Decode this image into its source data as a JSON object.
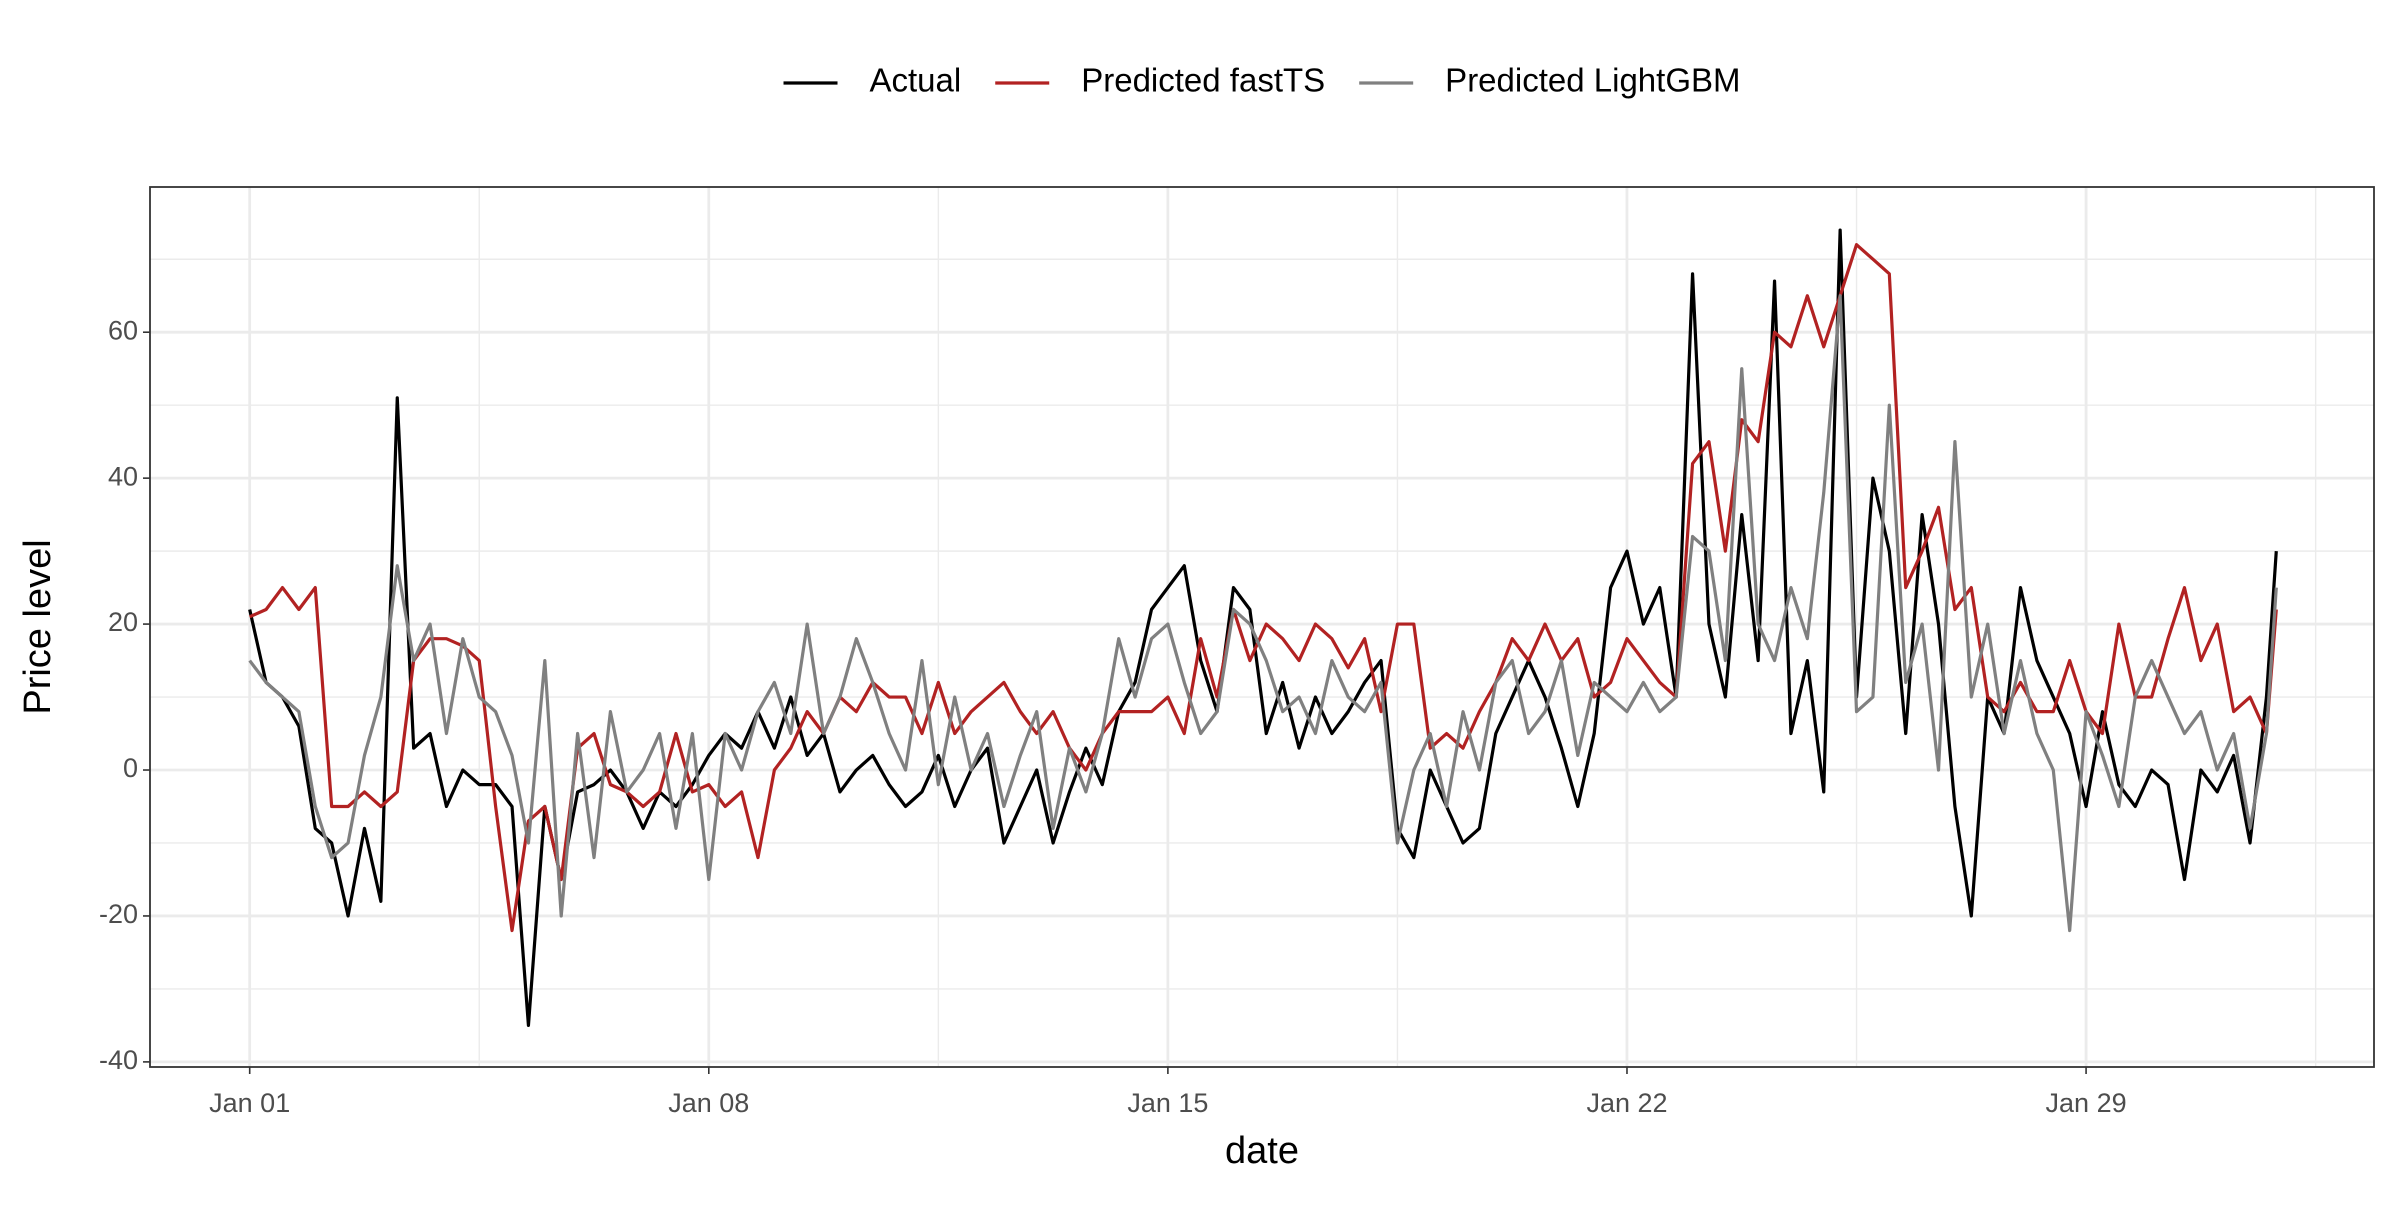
{
  "chart_data": {
    "type": "line",
    "xlabel": "date",
    "ylabel": "Price level",
    "legend": "top",
    "grid": true,
    "x": [
      0,
      0.25,
      0.5,
      0.75,
      1,
      1.25,
      1.5,
      1.75,
      2,
      2.25,
      2.5,
      2.75,
      3,
      3.25,
      3.5,
      3.75,
      4,
      4.25,
      4.5,
      4.75,
      5,
      5.25,
      5.5,
      5.75,
      6,
      6.25,
      6.5,
      6.75,
      7,
      7.25,
      7.5,
      7.75,
      8,
      8.25,
      8.5,
      8.75,
      9,
      9.25,
      9.5,
      9.75,
      10,
      10.25,
      10.5,
      10.75,
      11,
      11.25,
      11.5,
      11.75,
      12,
      12.25,
      12.5,
      12.75,
      13,
      13.25,
      13.5,
      13.75,
      14,
      14.25,
      14.5,
      14.75,
      15,
      15.25,
      15.5,
      15.75,
      16,
      16.25,
      16.5,
      16.75,
      17,
      17.25,
      17.5,
      17.75,
      18,
      18.25,
      18.5,
      18.75,
      19,
      19.25,
      19.5,
      19.75,
      20,
      20.25,
      20.5,
      20.75,
      21,
      21.25,
      21.5,
      21.75,
      22,
      22.25,
      22.5,
      22.75,
      23,
      23.25,
      23.5,
      23.75,
      24,
      24.25,
      24.5,
      24.75,
      25,
      25.25,
      25.5,
      25.75,
      26,
      26.25,
      26.5,
      26.75,
      27,
      27.25,
      27.5,
      27.75,
      28,
      28.25,
      28.5,
      28.75,
      29,
      29.25,
      29.5,
      29.75,
      30,
      30.25,
      30.5,
      30.75,
      30.9
    ],
    "series": [
      {
        "name": "Actual",
        "color": "#000000",
        "values": [
          22,
          12,
          10,
          6,
          -8,
          -10,
          -20,
          -8,
          -18,
          51,
          3,
          5,
          -5,
          0,
          -2,
          -2,
          -5,
          -35,
          -5,
          -15,
          -3,
          -2,
          0,
          -3,
          -8,
          -3,
          -5,
          -2,
          2,
          5,
          3,
          8,
          3,
          10,
          2,
          5,
          -3,
          0,
          2,
          -2,
          -5,
          -3,
          2,
          -5,
          0,
          3,
          -10,
          -5,
          0,
          -10,
          -3,
          3,
          -2,
          8,
          12,
          22,
          25,
          28,
          15,
          8,
          25,
          22,
          5,
          12,
          3,
          10,
          5,
          8,
          12,
          15,
          -8,
          -12,
          0,
          -5,
          -10,
          -8,
          5,
          10,
          15,
          10,
          3,
          -5,
          5,
          25,
          30,
          20,
          25,
          10,
          68,
          20,
          10,
          35,
          15,
          67,
          5,
          15,
          -3,
          74,
          10,
          40,
          30,
          5,
          35,
          20,
          -5,
          -20,
          10,
          5,
          25,
          15,
          10,
          5,
          -5,
          8,
          -2,
          -5,
          0,
          -2,
          -15,
          0,
          -3,
          2,
          -10,
          10,
          30
        ]
      },
      {
        "name": "Predicted fastTS",
        "color": "#b22222",
        "values": [
          21,
          22,
          25,
          22,
          25,
          -5,
          -5,
          -3,
          -5,
          -3,
          15,
          18,
          18,
          17,
          15,
          -5,
          -22,
          -7,
          -5,
          -15,
          3,
          5,
          -2,
          -3,
          -5,
          -3,
          5,
          -3,
          -2,
          -5,
          -3,
          -12,
          0,
          3,
          8,
          5,
          10,
          8,
          12,
          10,
          10,
          5,
          12,
          5,
          8,
          10,
          12,
          8,
          5,
          8,
          3,
          0,
          5,
          8,
          8,
          8,
          10,
          5,
          18,
          10,
          22,
          15,
          20,
          18,
          15,
          20,
          18,
          14,
          18,
          8,
          20,
          20,
          3,
          5,
          3,
          8,
          12,
          18,
          15,
          20,
          15,
          18,
          10,
          12,
          18,
          15,
          12,
          10,
          42,
          45,
          30,
          48,
          45,
          60,
          58,
          65,
          58,
          65,
          72,
          70,
          68,
          25,
          30,
          36,
          22,
          25,
          10,
          8,
          12,
          8,
          8,
          15,
          8,
          5,
          20,
          10,
          10,
          18,
          25,
          15,
          20,
          8,
          10,
          5,
          22
        ]
      },
      {
        "name": "Predicted LightGBM",
        "color": "#808080",
        "values": [
          15,
          12,
          10,
          8,
          -5,
          -12,
          -10,
          2,
          10,
          28,
          15,
          20,
          5,
          18,
          10,
          8,
          2,
          -10,
          15,
          -20,
          5,
          -12,
          8,
          -3,
          0,
          5,
          -8,
          5,
          -15,
          5,
          0,
          8,
          12,
          5,
          20,
          5,
          10,
          18,
          12,
          5,
          0,
          15,
          -2,
          10,
          0,
          5,
          -5,
          2,
          8,
          -8,
          3,
          -3,
          5,
          18,
          10,
          18,
          20,
          12,
          5,
          8,
          22,
          20,
          15,
          8,
          10,
          5,
          15,
          10,
          8,
          12,
          -10,
          0,
          5,
          -5,
          8,
          0,
          12,
          15,
          5,
          8,
          15,
          2,
          12,
          10,
          8,
          12,
          8,
          10,
          32,
          30,
          15,
          55,
          20,
          15,
          25,
          18,
          38,
          65,
          8,
          10,
          50,
          12,
          20,
          0,
          45,
          10,
          20,
          5,
          15,
          5,
          0,
          -22,
          8,
          2,
          -5,
          10,
          15,
          10,
          5,
          8,
          0,
          5,
          -8,
          5,
          25
        ]
      }
    ],
    "xlim": [
      -1.52,
      32.39
    ],
    "xticks": [
      {
        "value": 0,
        "label": "Jan 01"
      },
      {
        "value": 7,
        "label": "Jan 08"
      },
      {
        "value": 14,
        "label": "Jan 15"
      },
      {
        "value": 21,
        "label": "Jan 22"
      },
      {
        "value": 28,
        "label": "Jan 29"
      }
    ],
    "ylim": [
      -40.7,
      79.9
    ],
    "yticks": [
      -40,
      -20,
      0,
      20,
      40,
      60
    ]
  }
}
